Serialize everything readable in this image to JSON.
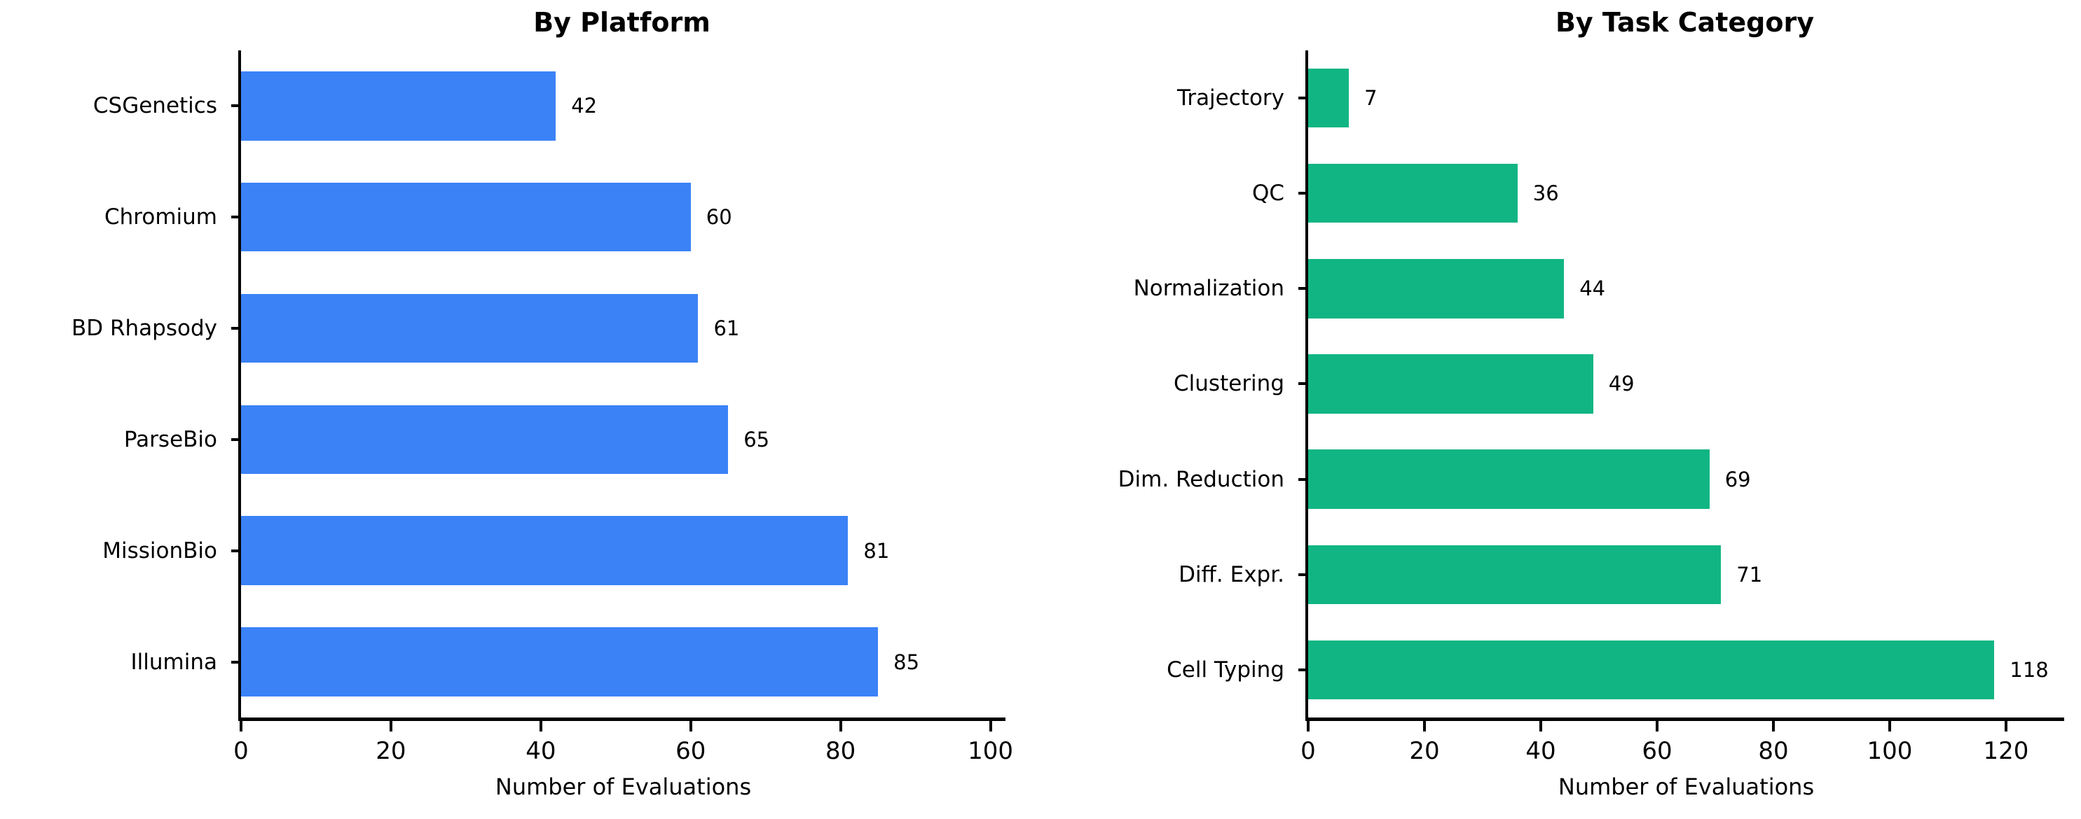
{
  "figure": {
    "background_color": "#ffffff",
    "text_color": "#000000"
  },
  "chart_data": [
    {
      "type": "bar",
      "orientation": "horizontal",
      "title": "By Platform",
      "xlabel": "Number of Evaluations",
      "categories_top_to_bottom": [
        "CSGenetics",
        "Chromium",
        "BD Rhapsody",
        "ParseBio",
        "MissionBio",
        "Illumina"
      ],
      "values": [
        42,
        60,
        61,
        65,
        81,
        85
      ],
      "bar_color": "#3b82f6",
      "xlim": [
        0,
        102
      ],
      "xticks": [
        0,
        20,
        40,
        60,
        80,
        100
      ],
      "grid": false,
      "legend": false,
      "value_labels_shown": true
    },
    {
      "type": "bar",
      "orientation": "horizontal",
      "title": "By Task Category",
      "xlabel": "Number of Evaluations",
      "categories_top_to_bottom": [
        "Trajectory",
        "QC",
        "Normalization",
        "Clustering",
        "Dim. Reduction",
        "Diff. Expr.",
        "Cell Typing"
      ],
      "values": [
        7,
        36,
        44,
        49,
        69,
        71,
        118
      ],
      "bar_color": "#11b583",
      "xlim": [
        0,
        130
      ],
      "xticks": [
        0,
        20,
        40,
        60,
        80,
        100,
        120
      ],
      "grid": false,
      "legend": false,
      "value_labels_shown": true
    }
  ]
}
